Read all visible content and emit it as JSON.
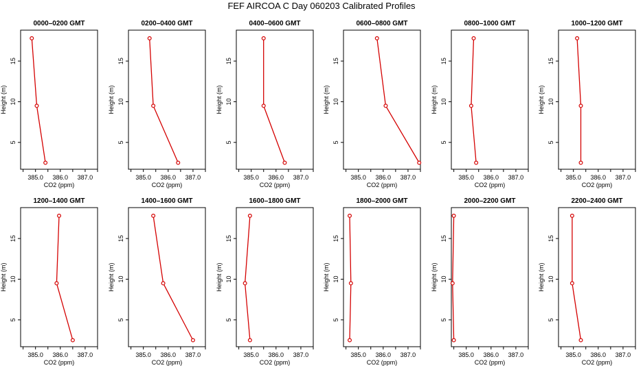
{
  "title": "FEF AIRCOA C  Day 060203  Calibrated Profiles",
  "colors": {
    "series": "#d40000",
    "axis": "#000000"
  },
  "chart_data": [
    {
      "type": "line",
      "title": "0000–0200 GMT",
      "xlabel": "CO2 (ppm)",
      "ylabel": "Height (m)",
      "xlim": [
        384.4,
        387.5
      ],
      "ylim": [
        1.7,
        18.8
      ],
      "xticks": [
        "385.0",
        "386.0",
        "387.0"
      ],
      "yticks": [
        "5",
        "10",
        "15"
      ],
      "x": [
        384.85,
        385.05,
        385.4
      ],
      "y": [
        17.8,
        9.5,
        2.5
      ]
    },
    {
      "type": "line",
      "title": "0200–0400 GMT",
      "xlabel": "CO2 (ppm)",
      "ylabel": "Height (m)",
      "xlim": [
        384.4,
        387.5
      ],
      "ylim": [
        1.7,
        18.8
      ],
      "xticks": [
        "385.0",
        "386.0",
        "387.0"
      ],
      "yticks": [
        "5",
        "10",
        "15"
      ],
      "x": [
        385.25,
        385.4,
        386.4
      ],
      "y": [
        17.8,
        9.5,
        2.5
      ]
    },
    {
      "type": "line",
      "title": "0400–0600 GMT",
      "xlabel": "CO2 (ppm)",
      "ylabel": "Height (m)",
      "xlim": [
        384.4,
        387.5
      ],
      "ylim": [
        1.7,
        18.8
      ],
      "xticks": [
        "385.0",
        "386.0",
        "387.0"
      ],
      "yticks": [
        "5",
        "10",
        "15"
      ],
      "x": [
        385.5,
        385.5,
        386.35
      ],
      "y": [
        17.8,
        9.5,
        2.5
      ]
    },
    {
      "type": "line",
      "title": "0600–0800 GMT",
      "xlabel": "CO2 (ppm)",
      "ylabel": "Height (m)",
      "xlim": [
        384.4,
        387.5
      ],
      "ylim": [
        1.7,
        18.8
      ],
      "xticks": [
        "385.0",
        "386.0",
        "387.0"
      ],
      "yticks": [
        "5",
        "10",
        "15"
      ],
      "x": [
        385.75,
        386.1,
        387.45
      ],
      "y": [
        17.8,
        9.5,
        2.5
      ]
    },
    {
      "type": "line",
      "title": "0800–1000 GMT",
      "xlabel": "CO2 (ppm)",
      "ylabel": "Height (m)",
      "xlim": [
        384.4,
        387.5
      ],
      "ylim": [
        1.7,
        18.8
      ],
      "xticks": [
        "385.0",
        "386.0",
        "387.0"
      ],
      "yticks": [
        "5",
        "10",
        "15"
      ],
      "x": [
        385.3,
        385.2,
        385.4
      ],
      "y": [
        17.8,
        9.5,
        2.5
      ]
    },
    {
      "type": "line",
      "title": "1000–1200 GMT",
      "xlabel": "CO2 (ppm)",
      "ylabel": "Height (m)",
      "xlim": [
        384.4,
        387.5
      ],
      "ylim": [
        1.7,
        18.8
      ],
      "xticks": [
        "385.0",
        "386.0",
        "387.0"
      ],
      "yticks": [
        "5",
        "10",
        "15"
      ],
      "x": [
        385.15,
        385.3,
        385.3
      ],
      "y": [
        17.8,
        9.5,
        2.5
      ]
    },
    {
      "type": "line",
      "title": "1200–1400 GMT",
      "xlabel": "CO2 (ppm)",
      "ylabel": "Height (m)",
      "xlim": [
        384.4,
        387.5
      ],
      "ylim": [
        1.7,
        18.8
      ],
      "xticks": [
        "385.0",
        "386.0",
        "387.0"
      ],
      "yticks": [
        "5",
        "10",
        "15"
      ],
      "x": [
        385.95,
        385.85,
        386.5
      ],
      "y": [
        17.8,
        9.5,
        2.5
      ]
    },
    {
      "type": "line",
      "title": "1400–1600 GMT",
      "xlabel": "CO2 (ppm)",
      "ylabel": "Height (m)",
      "xlim": [
        384.4,
        387.5
      ],
      "ylim": [
        1.7,
        18.8
      ],
      "xticks": [
        "385.0",
        "386.0",
        "387.0"
      ],
      "yticks": [
        "5",
        "10",
        "15"
      ],
      "x": [
        385.4,
        385.8,
        387.0
      ],
      "y": [
        17.8,
        9.5,
        2.5
      ]
    },
    {
      "type": "line",
      "title": "1600–1800 GMT",
      "xlabel": "CO2 (ppm)",
      "ylabel": "Height (m)",
      "xlim": [
        384.4,
        387.5
      ],
      "ylim": [
        1.7,
        18.8
      ],
      "xticks": [
        "385.0",
        "386.0",
        "387.0"
      ],
      "yticks": [
        "5",
        "10",
        "15"
      ],
      "x": [
        384.95,
        384.75,
        384.95
      ],
      "y": [
        17.8,
        9.5,
        2.5
      ]
    },
    {
      "type": "line",
      "title": "1800–2000 GMT",
      "xlabel": "CO2 (ppm)",
      "ylabel": "Height (m)",
      "xlim": [
        384.4,
        387.5
      ],
      "ylim": [
        1.7,
        18.8
      ],
      "xticks": [
        "385.0",
        "386.0",
        "387.0"
      ],
      "yticks": [
        "5",
        "10",
        "15"
      ],
      "x": [
        384.65,
        384.7,
        384.65
      ],
      "y": [
        17.8,
        9.5,
        2.5
      ]
    },
    {
      "type": "line",
      "title": "2000–2200 GMT",
      "xlabel": "CO2 (ppm)",
      "ylabel": "Height (m)",
      "xlim": [
        384.4,
        387.5
      ],
      "ylim": [
        1.7,
        18.8
      ],
      "xticks": [
        "385.0",
        "386.0",
        "387.0"
      ],
      "yticks": [
        "5",
        "10",
        "15"
      ],
      "x": [
        384.5,
        384.45,
        384.5
      ],
      "y": [
        17.8,
        9.5,
        2.5
      ]
    },
    {
      "type": "line",
      "title": "2200–2400 GMT",
      "xlabel": "CO2 (ppm)",
      "ylabel": "Height (m)",
      "xlim": [
        384.4,
        387.5
      ],
      "ylim": [
        1.7,
        18.8
      ],
      "xticks": [
        "385.0",
        "386.0",
        "387.0"
      ],
      "yticks": [
        "5",
        "10",
        "15"
      ],
      "x": [
        384.95,
        384.95,
        385.3
      ],
      "y": [
        17.8,
        9.5,
        2.5
      ]
    }
  ]
}
